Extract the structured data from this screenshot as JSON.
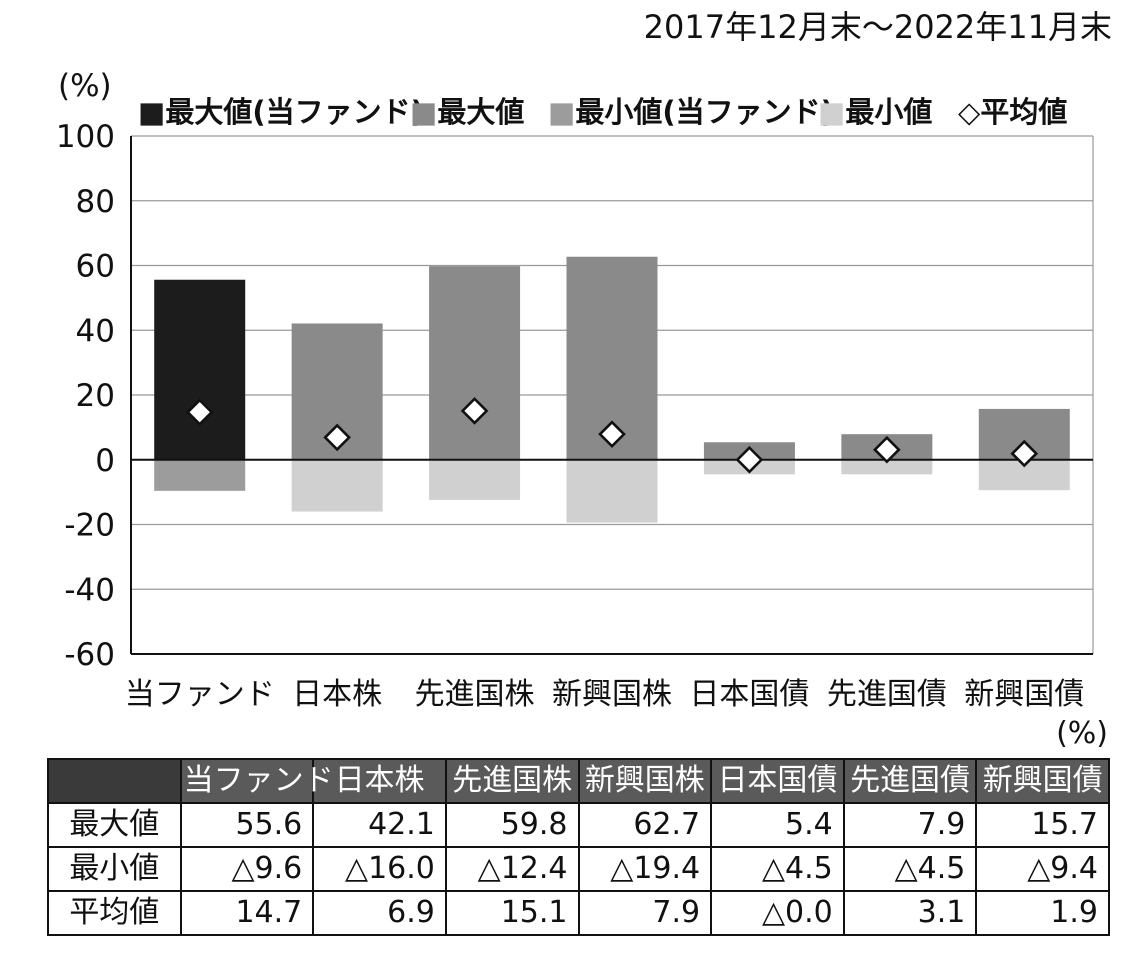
{
  "period": "2017年12月末〜2022年11月末",
  "chart_data": {
    "type": "bar",
    "ylabel": "(%)",
    "ylim": [
      -60,
      100
    ],
    "yticks": [
      100,
      80,
      60,
      40,
      20,
      0,
      -20,
      -40,
      -60
    ],
    "grid": true,
    "legend_position": "top",
    "categories": [
      "当ファンド",
      "日本株",
      "先進国株",
      "新興国株",
      "日本国債",
      "先進国債",
      "新興国債"
    ],
    "series": [
      {
        "name": "最大値",
        "values": [
          55.6,
          42.1,
          59.8,
          62.7,
          5.4,
          7.9,
          15.7
        ]
      },
      {
        "name": "最小値",
        "values": [
          -9.6,
          -16.0,
          -12.4,
          -19.4,
          -4.5,
          -4.5,
          -9.4
        ]
      },
      {
        "name": "平均値",
        "values": [
          14.7,
          6.9,
          15.1,
          7.9,
          0.0,
          3.1,
          1.9
        ]
      }
    ],
    "legend": [
      {
        "label": "■最大値(当ファンド)",
        "color": "#1c1c1c"
      },
      {
        "label": "■最大値",
        "color": "#8a8a8a"
      },
      {
        "label": "■最小値(当ファンド)",
        "color": "#9c9c9c"
      },
      {
        "label": "■最小値",
        "color": "#d0d0d0"
      },
      {
        "label": "◇平均値",
        "color": "#ffffff"
      }
    ],
    "colors": {
      "fund_max": "#1c1c1c",
      "max": "#8a8a8a",
      "fund_min": "#9c9c9c",
      "min": "#d0d0d0",
      "grid": "#9a9a9a",
      "axis": "#111111"
    }
  },
  "table": {
    "unit": "(%)",
    "headers": [
      "当ファンド",
      "日本株",
      "先進国株",
      "新興国株",
      "日本国債",
      "先進国債",
      "新興国債"
    ],
    "rows": [
      {
        "label": "最大値",
        "values": [
          "55.6",
          "42.1",
          "59.8",
          "62.7",
          "5.4",
          "7.9",
          "15.7"
        ]
      },
      {
        "label": "最小値",
        "values": [
          "△9.6",
          "△16.0",
          "△12.4",
          "△19.4",
          "△4.5",
          "△4.5",
          "△9.4"
        ]
      },
      {
        "label": "平均値",
        "values": [
          "14.7",
          "6.9",
          "15.1",
          "7.9",
          "△0.0",
          "3.1",
          "1.9"
        ]
      }
    ]
  }
}
